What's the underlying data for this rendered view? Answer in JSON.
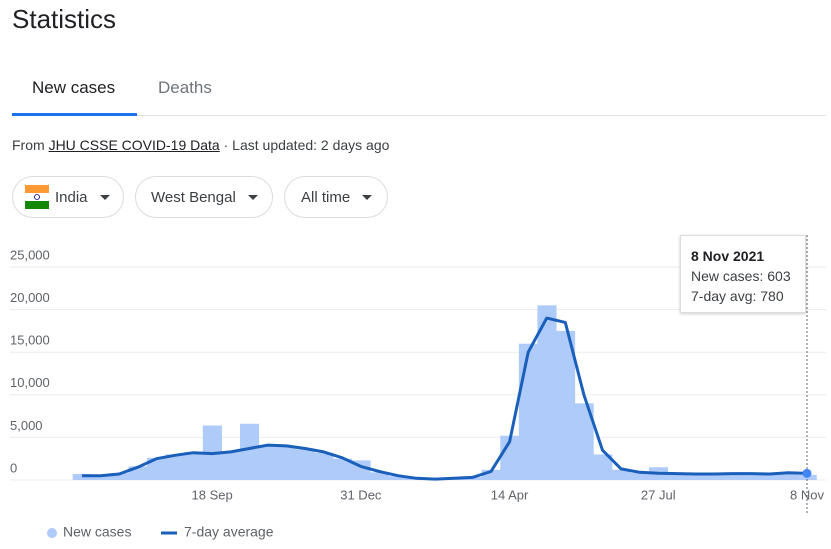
{
  "header": {
    "title": "Statistics"
  },
  "tabs": [
    "New cases",
    "Deaths"
  ],
  "source": {
    "prefix": "From",
    "link": "JHU CSSE COVID-19 Data",
    "updated": "· Last updated: 2 days ago"
  },
  "filters": [
    "India",
    "West Bengal",
    "All time"
  ],
  "tooltip": {
    "date": "8 Nov 2021",
    "lines": [
      "New cases: 603",
      "7-day avg: 780"
    ]
  },
  "chart_data": {
    "type": "bar-line",
    "categories": [
      null,
      null,
      null,
      null,
      null,
      null,
      null,
      "18 Sep",
      null,
      null,
      null,
      null,
      null,
      null,
      null,
      "31 Dec",
      null,
      null,
      null,
      null,
      null,
      null,
      null,
      "14 Apr",
      null,
      null,
      null,
      null,
      null,
      null,
      null,
      "27 Jul",
      null,
      null,
      null,
      null,
      null,
      null,
      null,
      "8 Nov"
    ],
    "series": [
      {
        "name": "New cases",
        "color": "#aecbfa",
        "values": [
          700,
          450,
          800,
          1600,
          2600,
          3000,
          3300,
          6400,
          3400,
          6600,
          4000,
          3900,
          3600,
          3200,
          2500,
          2300,
          900,
          450,
          200,
          120,
          230,
          330,
          1200,
          5200,
          16000,
          20500,
          17500,
          9000,
          3000,
          1200,
          850,
          1500,
          700,
          680,
          650,
          800,
          720,
          680,
          780,
          603
        ]
      },
      {
        "name": "7-day average",
        "color": "#1a5fba",
        "values": [
          500,
          500,
          700,
          1500,
          2500,
          2900,
          3200,
          3100,
          3300,
          3700,
          4100,
          4000,
          3700,
          3300,
          2600,
          1600,
          1000,
          500,
          200,
          100,
          200,
          300,
          1000,
          4500,
          15000,
          19000,
          18500,
          10000,
          3500,
          1300,
          900,
          800,
          750,
          700,
          700,
          750,
          750,
          700,
          850,
          780
        ]
      }
    ],
    "ylim": [
      0,
      25000
    ],
    "yticks": [
      0,
      {
        "value": 5000,
        "label": "5,000"
      },
      {
        "value": 10000,
        "label": "10,000"
      },
      {
        "value": 15000,
        "label": "15,000"
      },
      {
        "value": 20000,
        "label": "20,000"
      },
      {
        "value": 25000,
        "label": "25,000"
      }
    ],
    "grid": true
  }
}
